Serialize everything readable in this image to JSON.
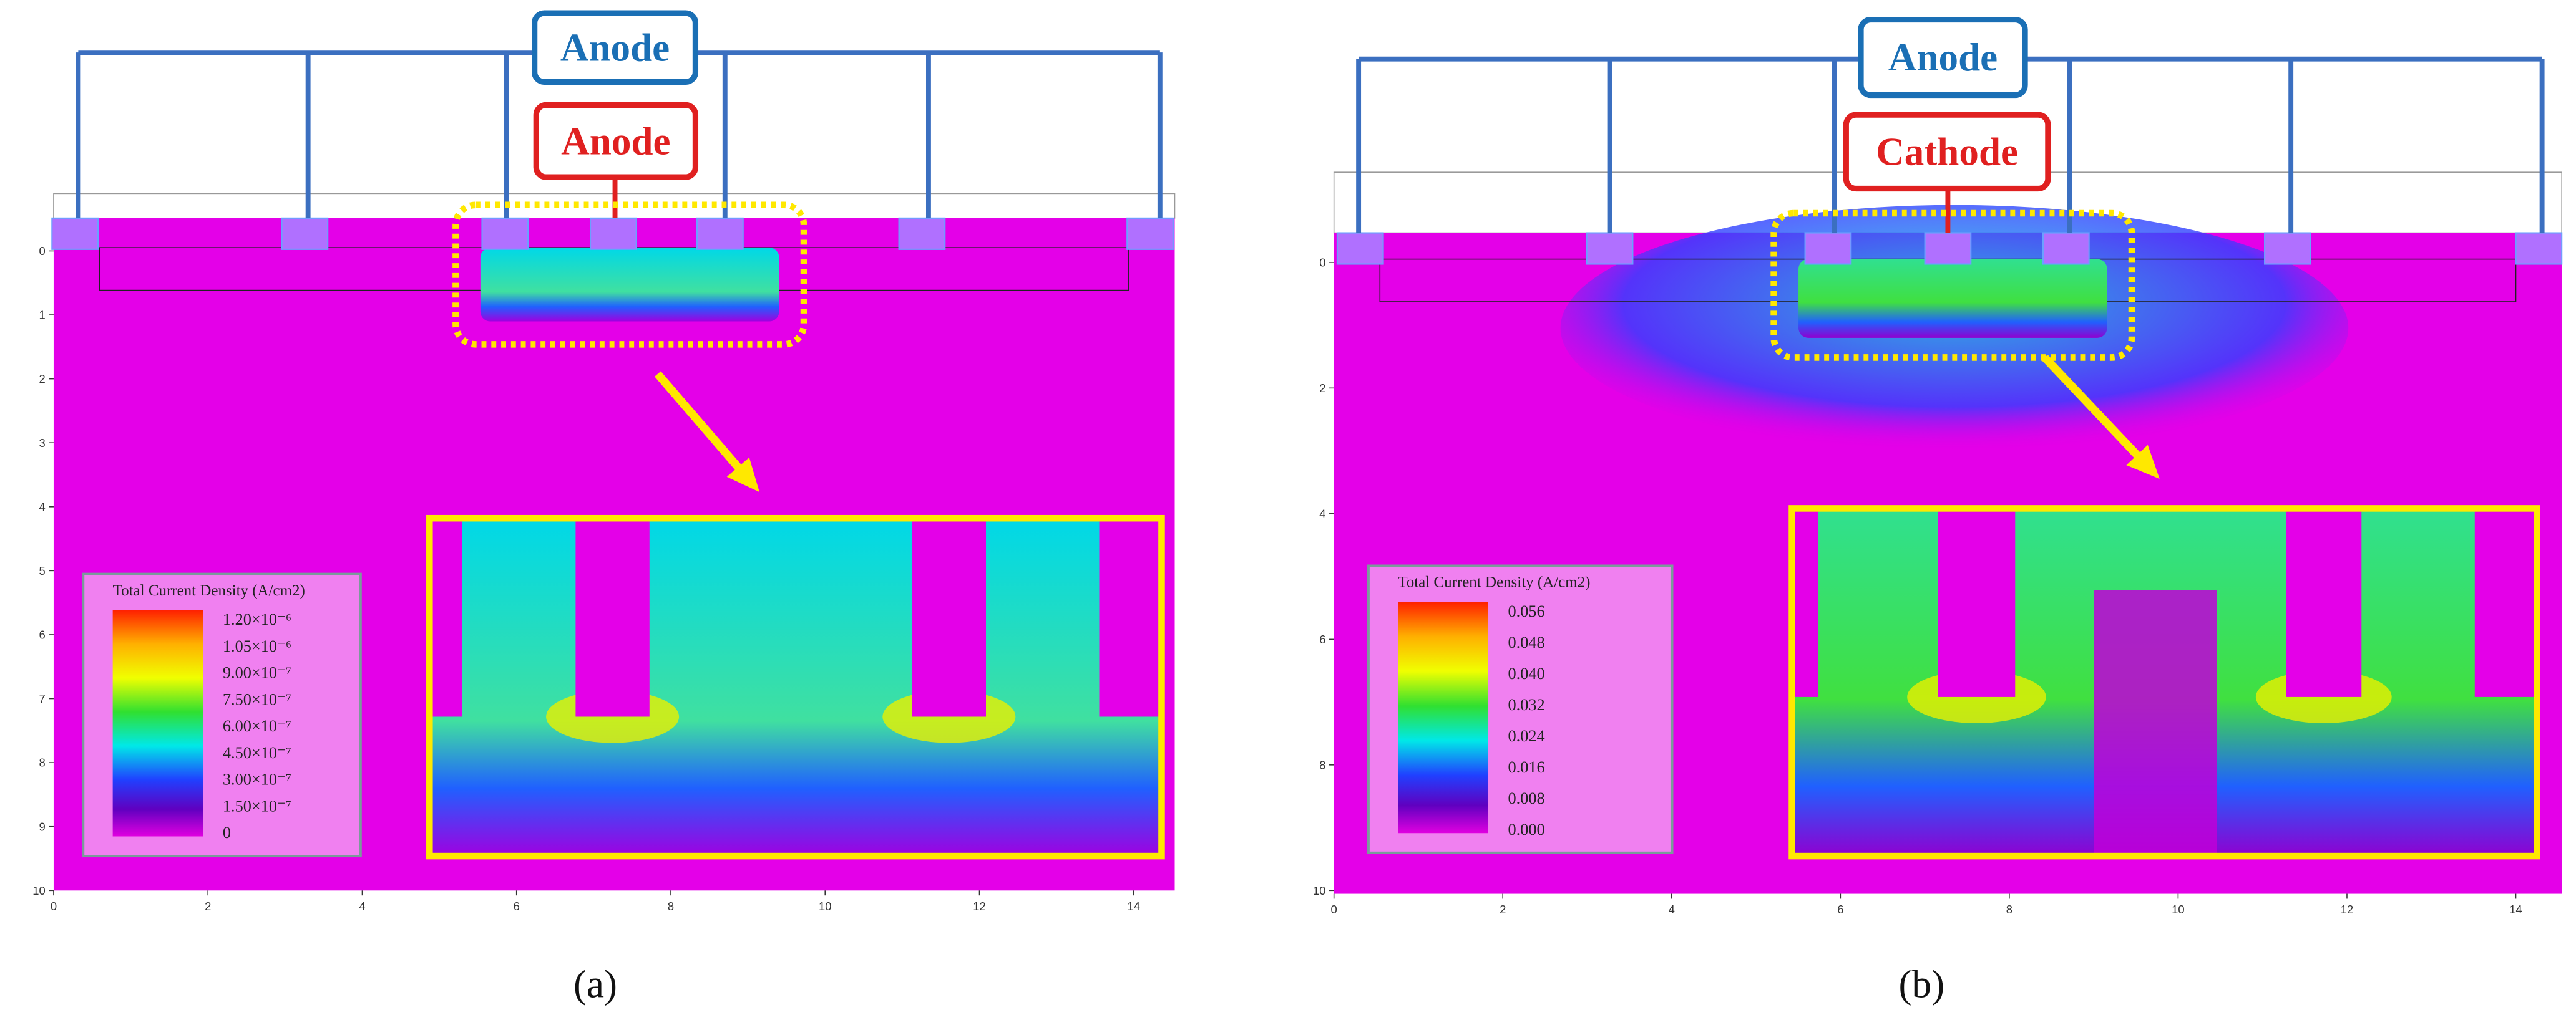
{
  "panels": [
    {
      "caption": "(a)",
      "top_label": "Anode",
      "inner_label": "Anode",
      "legend": {
        "title": "Total Current Density (A/cm2)",
        "labels": [
          "1.20×10⁻⁶",
          "1.05×10⁻⁶",
          "9.00×10⁻⁷",
          "7.50×10⁻⁷",
          "6.00×10⁻⁷",
          "4.50×10⁻⁷",
          "3.00×10⁻⁷",
          "1.50×10⁻⁷",
          "0"
        ]
      },
      "xticks": [
        "0",
        "2",
        "4",
        "6",
        "8",
        "10",
        "12",
        "14"
      ],
      "yticks": [
        "0",
        "1",
        "2",
        "3",
        "4",
        "5",
        "6",
        "7",
        "8",
        "9",
        "10"
      ]
    },
    {
      "caption": "(b)",
      "top_label": "Anode",
      "inner_label": "Cathode",
      "legend": {
        "title": "Total Current Density (A/cm2)",
        "labels": [
          "0.056",
          "0.048",
          "0.040",
          "0.032",
          "0.024",
          "0.016",
          "0.008",
          "0.000"
        ]
      },
      "xticks": [
        "0",
        "2",
        "4",
        "6",
        "8",
        "10",
        "12",
        "14"
      ],
      "yticks": [
        "0",
        "2",
        "4",
        "6",
        "8",
        "10"
      ]
    }
  ]
}
